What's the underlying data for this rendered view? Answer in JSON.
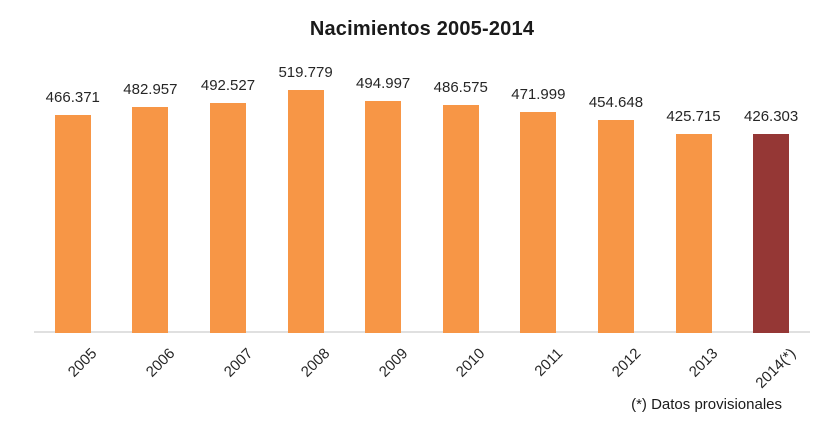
{
  "chart_data": {
    "type": "bar",
    "title": "Nacimientos 2005-2014",
    "categories": [
      "2005",
      "2006",
      "2007",
      "2008",
      "2009",
      "2010",
      "2011",
      "2012",
      "2013",
      "2014(*)"
    ],
    "values": [
      466371,
      482957,
      492527,
      519779,
      494997,
      486575,
      471999,
      454648,
      425715,
      426303
    ],
    "value_labels": [
      "466.371",
      "482.957",
      "492.527",
      "519.779",
      "494.997",
      "486.575",
      "471.999",
      "454.648",
      "425.715",
      "426.303"
    ],
    "footnote": "(*) Datos provisionales",
    "xlabel": "",
    "ylabel": "",
    "ylim": [
      0,
      560000
    ],
    "grid": false,
    "legend": "none",
    "bar_color": "#F79646",
    "highlight_color": "#953735",
    "highlight_index": 9,
    "axis_line_color": "#E0E0E0"
  }
}
